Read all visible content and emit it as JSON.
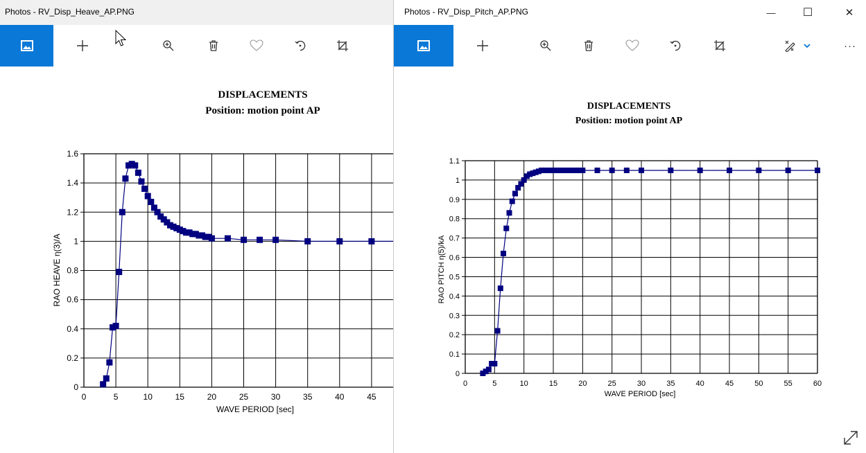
{
  "left_window": {
    "title": "Photos - RV_Disp_Heave_AP.PNG",
    "toolbar": [
      "image-icon",
      "add-icon",
      "zoom-in-icon",
      "delete-icon",
      "favorite-icon",
      "rotate-icon",
      "crop-icon"
    ]
  },
  "right_window": {
    "title": "Photos - RV_Disp_Pitch_AP.PNG",
    "window_controls": {
      "minimize": "—",
      "maximize": "☐",
      "close": "✕"
    },
    "toolbar": [
      "image-icon",
      "add-icon",
      "zoom-in-icon",
      "delete-icon",
      "favorite-icon",
      "rotate-icon",
      "crop-icon",
      "edit-icon",
      "more-icon"
    ],
    "more_label": "···"
  },
  "colors": {
    "accent": "#0a78d7",
    "series": "#000080"
  },
  "chart_data": [
    {
      "type": "line",
      "title": "DISPLACEMENTS",
      "subtitle": "Position: motion point AP",
      "xlabel": "WAVE PERIOD  [sec]",
      "ylabel": "RAO  HEAVE  η(3)/A",
      "xlim": [
        0,
        50
      ],
      "ylim": [
        0,
        1.6
      ],
      "xticks": [
        "0",
        "5",
        "10",
        "15",
        "20",
        "25",
        "30",
        "35",
        "40",
        "45"
      ],
      "yticks": [
        "0",
        "0.2",
        "0.4",
        "0.6",
        "0.8",
        "1",
        "1.2",
        "1.4",
        "1.6"
      ],
      "grid": true,
      "series": [
        {
          "x": [
            3,
            3.5,
            4,
            4.5,
            5,
            5.5,
            6,
            6.5,
            7,
            7.5,
            8,
            8.5,
            9,
            9.5,
            10,
            10.5,
            11,
            11.5,
            12,
            12.5,
            13,
            13.5,
            14,
            14.5,
            15,
            15.5,
            16,
            16.5,
            17,
            17.5,
            18,
            18.5,
            19,
            19.5,
            20,
            22.5,
            25,
            27.5,
            30,
            35,
            40,
            45
          ],
          "y": [
            0.02,
            0.06,
            0.17,
            0.41,
            0.42,
            0.79,
            1.2,
            1.43,
            1.52,
            1.53,
            1.52,
            1.47,
            1.41,
            1.36,
            1.31,
            1.27,
            1.23,
            1.2,
            1.17,
            1.15,
            1.13,
            1.11,
            1.1,
            1.09,
            1.08,
            1.07,
            1.06,
            1.06,
            1.05,
            1.05,
            1.04,
            1.04,
            1.03,
            1.03,
            1.02,
            1.02,
            1.01,
            1.01,
            1.01,
            1.0,
            1.0,
            1.0
          ]
        }
      ]
    },
    {
      "type": "line",
      "title": "DISPLACEMENTS",
      "subtitle": "Position: motion point AP",
      "xlabel": "WAVE PERIOD  [sec]",
      "ylabel": "RAO  PITCH  η(5)/kA",
      "xlim": [
        0,
        60
      ],
      "ylim": [
        0,
        1.1
      ],
      "xticks": [
        "0",
        "5",
        "10",
        "15",
        "20",
        "25",
        "30",
        "35",
        "40",
        "45",
        "50",
        "55",
        "60"
      ],
      "yticks": [
        "0",
        "0.1",
        "0.2",
        "0.3",
        "0.4",
        "0.5",
        "0.6",
        "0.7",
        "0.8",
        "0.9",
        "1",
        "1.1"
      ],
      "grid": true,
      "series": [
        {
          "x": [
            3,
            3.5,
            4,
            4.5,
            5,
            5.5,
            6,
            6.5,
            7,
            7.5,
            8,
            8.5,
            9,
            9.5,
            10,
            10.5,
            11,
            11.5,
            12,
            12.5,
            13,
            13.5,
            14,
            14.5,
            15,
            15.5,
            16,
            16.5,
            17,
            17.5,
            18,
            18.5,
            19,
            19.5,
            20,
            22.5,
            25,
            27.5,
            30,
            35,
            40,
            45,
            50,
            55,
            60
          ],
          "y": [
            0.0,
            0.01,
            0.02,
            0.05,
            0.05,
            0.22,
            0.44,
            0.62,
            0.75,
            0.83,
            0.89,
            0.93,
            0.96,
            0.98,
            1.0,
            1.02,
            1.03,
            1.035,
            1.04,
            1.045,
            1.05,
            1.05,
            1.05,
            1.05,
            1.05,
            1.05,
            1.05,
            1.05,
            1.05,
            1.05,
            1.05,
            1.05,
            1.05,
            1.05,
            1.05,
            1.05,
            1.05,
            1.05,
            1.05,
            1.05,
            1.05,
            1.05,
            1.05,
            1.05,
            1.05
          ]
        }
      ]
    }
  ]
}
